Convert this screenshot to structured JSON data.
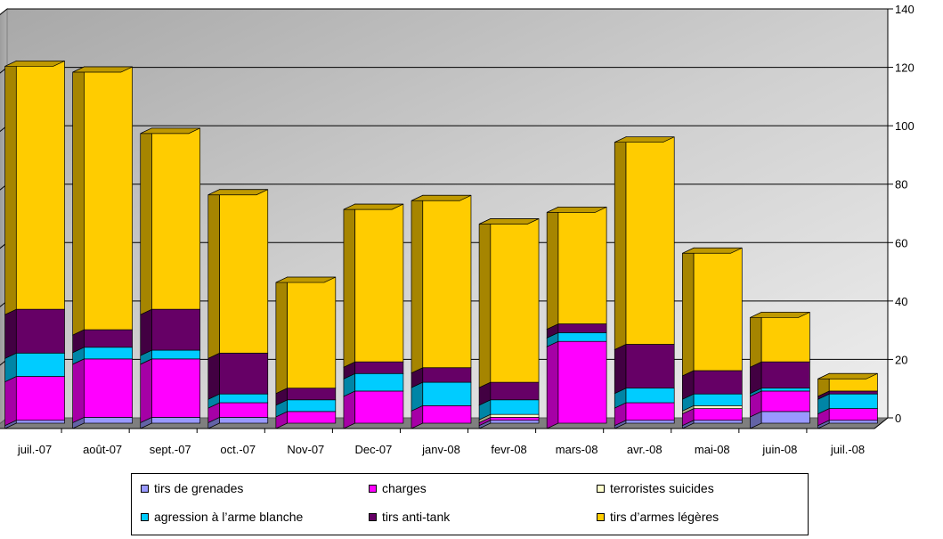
{
  "chart_data": {
    "type": "bar",
    "stacked": true,
    "three_d": true,
    "categories": [
      "juil.-07",
      "août-07",
      "sept.-07",
      "oct.-07",
      "Nov-07",
      "Dec-07",
      "janv-08",
      "fevr-08",
      "mars-08",
      "avr.-08",
      "mai-08",
      "juin-08",
      "juil.-08"
    ],
    "series": [
      {
        "name": "tirs de grenades",
        "color": "#9999ff",
        "values": [
          1,
          2,
          2,
          2,
          0,
          0,
          0,
          1,
          0,
          1,
          1,
          4,
          1
        ]
      },
      {
        "name": "charges",
        "color": "#ff00ff",
        "values": [
          15,
          20,
          20,
          5,
          4,
          11,
          6,
          1,
          28,
          6,
          4,
          7,
          4
        ]
      },
      {
        "name": "terroristes suicides",
        "color": "#ffffcc",
        "values": [
          0,
          0,
          0,
          0,
          0,
          0,
          0,
          1,
          0,
          0,
          1,
          0,
          0
        ]
      },
      {
        "name": "agression à l’arme blanche",
        "color": "#00ccff",
        "values": [
          8,
          4,
          3,
          3,
          4,
          6,
          8,
          5,
          3,
          5,
          4,
          1,
          5
        ]
      },
      {
        "name": "tirs anti-tank",
        "color": "#660066",
        "values": [
          15,
          6,
          14,
          14,
          4,
          4,
          5,
          6,
          3,
          15,
          8,
          9,
          1
        ]
      },
      {
        "name": "tirs d’armes légères",
        "color": "#ffcc00",
        "values": [
          85,
          90,
          62,
          56,
          38,
          54,
          59,
          56,
          40,
          71,
          42,
          17,
          6
        ]
      }
    ],
    "ylim": [
      0,
      140
    ],
    "yticks": [
      0,
      20,
      40,
      60,
      80,
      100,
      120,
      140
    ],
    "ytick_labels": [
      "0",
      "20",
      "40",
      "60",
      "80",
      "100",
      "120",
      "140"
    ],
    "y_axis_side": "right",
    "grid": true,
    "legend_position": "bottom",
    "title": "",
    "xlabel": "",
    "ylabel": ""
  }
}
